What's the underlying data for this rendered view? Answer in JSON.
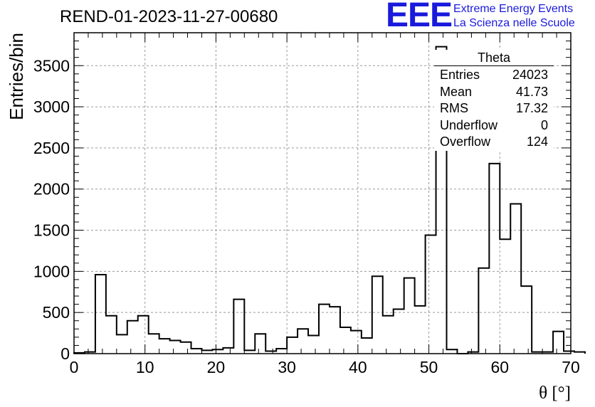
{
  "title": "REND-01-2023-11-27-00680",
  "logo": {
    "mark": "EEE",
    "line1": "Extreme Energy Events",
    "line2": "La Scienza nelle Scuole",
    "color": "#1a1adc"
  },
  "stats_box": {
    "title": "Theta",
    "rows": [
      {
        "label": "Entries",
        "value": "24023"
      },
      {
        "label": "Mean",
        "value": "41.73"
      },
      {
        "label": "RMS",
        "value": "17.32"
      },
      {
        "label": "Underflow",
        "value": "0"
      },
      {
        "label": "Overflow",
        "value": "124"
      }
    ]
  },
  "chart_data": {
    "type": "bar",
    "style": "step-histogram",
    "title": "REND-01-2023-11-27-00680",
    "xlabel": "θ [°]",
    "ylabel": "Entries/bin",
    "xlim": [
      0,
      70
    ],
    "ylim": [
      0,
      3900
    ],
    "bin_width": 1.5,
    "x_ticks": [
      0,
      10,
      20,
      30,
      40,
      50,
      60,
      70
    ],
    "x_tick_labels": [
      "0",
      "10",
      "20",
      "30",
      "40",
      "50",
      "60",
      "70"
    ],
    "y_ticks": [
      0,
      500,
      1000,
      1500,
      2000,
      2500,
      3000,
      3500
    ],
    "y_tick_labels": [
      "0",
      "500",
      "1000",
      "1500",
      "2000",
      "2500",
      "3000",
      "3500"
    ],
    "grid": true,
    "legend": "none",
    "bin_edges_start": 0,
    "values": [
      10,
      20,
      960,
      460,
      230,
      400,
      460,
      240,
      180,
      160,
      140,
      60,
      40,
      50,
      70,
      660,
      40,
      240,
      30,
      60,
      200,
      300,
      220,
      600,
      570,
      320,
      280,
      190,
      940,
      460,
      540,
      920,
      580,
      1440,
      3730,
      50,
      0,
      20,
      1040,
      2310,
      1390,
      1820,
      820,
      20,
      20,
      270,
      30,
      20
    ]
  }
}
